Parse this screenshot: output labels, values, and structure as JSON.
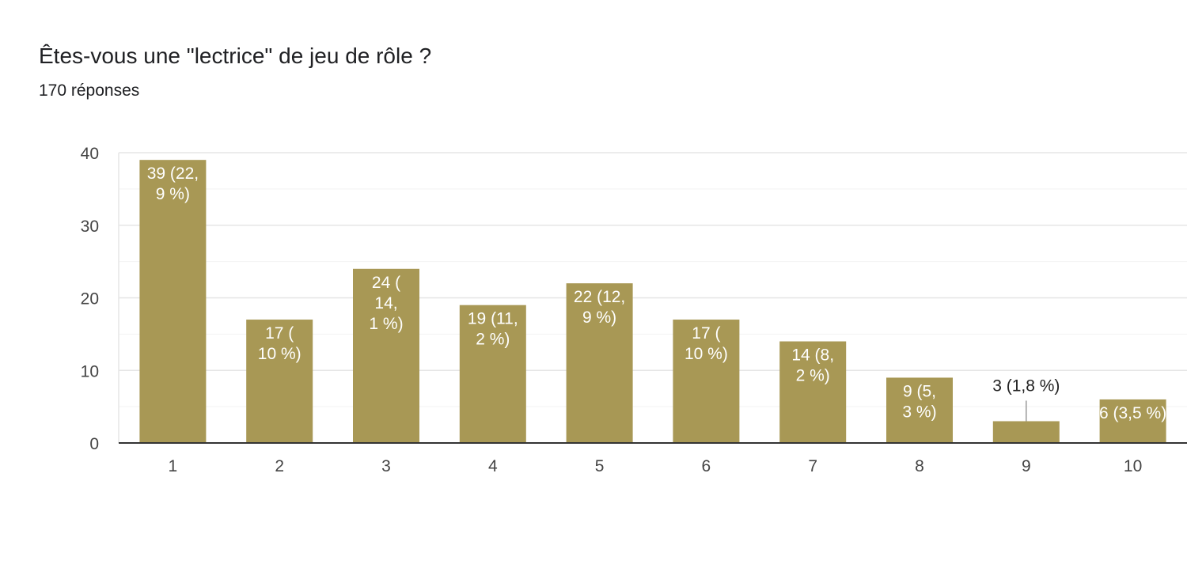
{
  "title": "Êtes-vous une \"lectrice\" de jeu de rôle ?",
  "subtitle": "170 réponses",
  "colors": {
    "bar": "#a89855",
    "grid": "#ebebeb",
    "axis": "#333333"
  },
  "chart_data": {
    "type": "bar",
    "categories": [
      "1",
      "2",
      "3",
      "4",
      "5",
      "6",
      "7",
      "8",
      "9",
      "10"
    ],
    "values": [
      39,
      17,
      24,
      19,
      22,
      17,
      14,
      9,
      3,
      6
    ],
    "labels": [
      [
        "39 (22,",
        "9 %)"
      ],
      [
        "17 (",
        "10 %)"
      ],
      [
        "24 (",
        "14,",
        "1 %)"
      ],
      [
        "19 (11,",
        "2 %)"
      ],
      [
        "22 (12,",
        "9 %)"
      ],
      [
        "17 (",
        "10 %)"
      ],
      [
        "14 (8,",
        "2 %)"
      ],
      [
        "9 (5,",
        "3 %)"
      ],
      [
        "3 (1,8 %)"
      ],
      [
        "6 (3,5 %)"
      ]
    ],
    "yticks": [
      "0",
      "10",
      "20",
      "30",
      "40"
    ],
    "ylim": [
      0,
      40
    ],
    "minor_grid_step": 5,
    "grid": true
  }
}
